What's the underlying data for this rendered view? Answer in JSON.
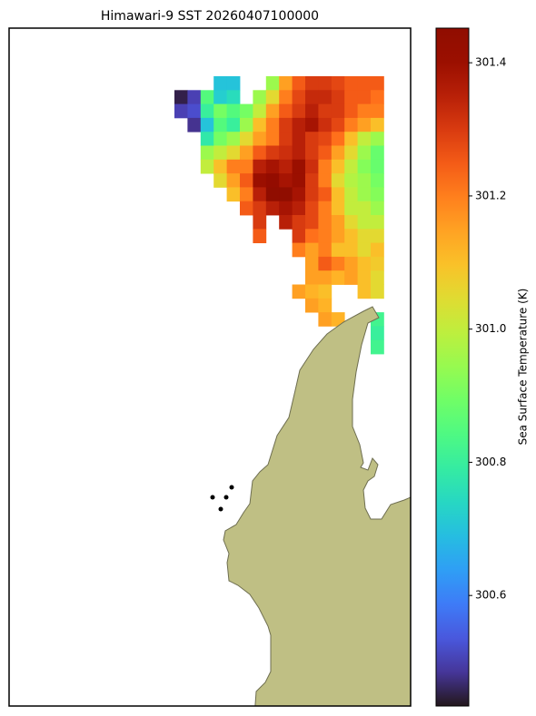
{
  "chart_data": {
    "type": "heatmap",
    "title": "Himawari-9 SST 20260407100000",
    "colormap": "turbo",
    "colorbar_label": "Sea Surface Temperature (K)",
    "clim": [
      300.434,
      301.452
    ],
    "cticks": [
      300.6,
      300.8,
      {
        "value": 301.0,
        "label": "301.0"
      },
      301.2,
      301.4
    ],
    "values": [
      [
        null,
        null,
        null,
        300.7,
        300.7,
        null,
        null,
        300.95,
        301.15,
        301.25,
        301.3,
        301.3,
        301.28,
        301.25,
        301.25,
        301.25
      ],
      [
        300.45,
        300.5,
        300.85,
        300.72,
        300.75,
        null,
        300.95,
        301.05,
        301.2,
        301.28,
        301.33,
        301.33,
        301.3,
        301.25,
        301.25,
        301.22
      ],
      [
        300.5,
        300.52,
        300.8,
        300.9,
        300.85,
        300.9,
        301.0,
        301.15,
        301.25,
        301.3,
        301.35,
        301.3,
        301.3,
        301.25,
        301.2,
        301.2
      ],
      [
        null,
        300.48,
        300.7,
        300.85,
        300.8,
        300.95,
        301.1,
        301.2,
        301.3,
        301.35,
        301.38,
        301.32,
        301.28,
        301.2,
        301.15,
        301.1
      ],
      [
        null,
        null,
        300.78,
        300.9,
        300.95,
        301.05,
        301.15,
        301.2,
        301.3,
        301.35,
        301.3,
        301.28,
        301.22,
        301.1,
        301.0,
        300.95
      ],
      [
        null,
        null,
        300.95,
        301.0,
        301.05,
        301.15,
        301.25,
        301.3,
        301.32,
        301.35,
        301.3,
        301.25,
        301.15,
        301.05,
        300.95,
        300.88
      ],
      [
        null,
        null,
        301.0,
        301.1,
        301.2,
        301.2,
        301.35,
        301.38,
        301.35,
        301.4,
        301.32,
        301.2,
        301.1,
        301.0,
        300.92,
        300.88
      ],
      [
        null,
        null,
        null,
        301.05,
        301.15,
        301.25,
        301.4,
        301.42,
        301.38,
        301.4,
        301.3,
        301.2,
        301.05,
        300.98,
        300.95,
        300.9
      ],
      [
        null,
        null,
        null,
        null,
        301.1,
        301.2,
        301.35,
        301.45,
        301.45,
        301.38,
        301.3,
        301.25,
        301.1,
        301.0,
        300.95,
        300.92
      ],
      [
        null,
        null,
        null,
        null,
        null,
        301.25,
        301.3,
        301.35,
        301.38,
        301.35,
        301.28,
        301.2,
        301.1,
        301.0,
        301.0,
        300.95
      ],
      [
        null,
        null,
        null,
        null,
        null,
        null,
        301.3,
        null,
        301.35,
        301.3,
        301.28,
        301.2,
        301.15,
        301.05,
        301.0,
        301.0
      ],
      [
        null,
        null,
        null,
        null,
        null,
        null,
        301.25,
        null,
        null,
        301.3,
        301.22,
        301.2,
        301.15,
        301.1,
        301.05,
        301.05
      ],
      [
        null,
        null,
        null,
        null,
        null,
        null,
        null,
        null,
        null,
        301.2,
        301.15,
        301.2,
        301.1,
        301.1,
        301.05,
        301.1
      ],
      [
        null,
        null,
        null,
        null,
        null,
        null,
        null,
        null,
        null,
        null,
        301.15,
        301.25,
        301.2,
        301.15,
        301.1,
        301.08
      ],
      [
        null,
        null,
        null,
        null,
        null,
        null,
        null,
        null,
        null,
        null,
        301.15,
        301.15,
        301.12,
        301.15,
        301.1,
        301.05
      ],
      [
        null,
        null,
        null,
        null,
        null,
        null,
        null,
        null,
        null,
        301.15,
        301.12,
        301.1,
        null,
        null,
        301.1,
        301.05
      ],
      [
        null,
        null,
        null,
        null,
        null,
        null,
        null,
        null,
        null,
        null,
        301.15,
        301.12,
        null,
        null,
        null,
        null
      ],
      [
        null,
        null,
        null,
        null,
        null,
        null,
        null,
        null,
        null,
        null,
        null,
        301.15,
        301.12,
        null,
        null,
        300.82
      ],
      [
        null,
        null,
        null,
        null,
        null,
        null,
        null,
        null,
        null,
        null,
        null,
        null,
        null,
        null,
        null,
        300.8
      ],
      [
        null,
        null,
        null,
        null,
        null,
        null,
        null,
        null,
        null,
        null,
        null,
        null,
        null,
        null,
        null,
        300.82
      ]
    ]
  }
}
